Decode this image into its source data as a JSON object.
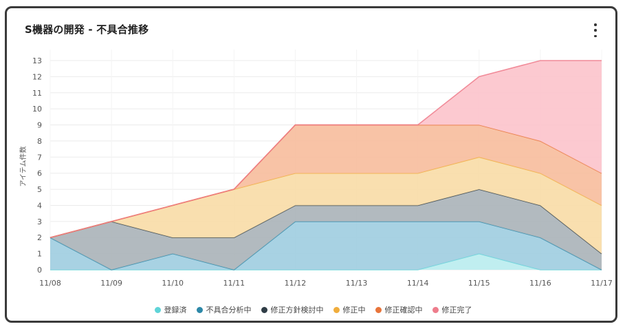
{
  "card": {
    "title": "S機器の開発 - 不具合推移"
  },
  "chart_data": {
    "type": "area",
    "stacked": true,
    "title": "S機器の開発 - 不具合推移",
    "xlabel": "",
    "ylabel": "アイテム件数",
    "categories": [
      "11/08",
      "11/09",
      "11/10",
      "11/11",
      "11/12",
      "11/13",
      "11/14",
      "11/15",
      "11/16",
      "11/17"
    ],
    "ylim": [
      0,
      13
    ],
    "yticks": [
      0,
      1,
      2,
      3,
      4,
      5,
      6,
      7,
      8,
      9,
      10,
      11,
      12,
      13
    ],
    "grid": true,
    "legend_position": "bottom",
    "series": [
      {
        "name": "登録済",
        "color": "#5fd4d8",
        "fill": "#b9ecee",
        "values": [
          0,
          0,
          0,
          0,
          0,
          0,
          0,
          1,
          0,
          0
        ]
      },
      {
        "name": "不具合分析中",
        "color": "#2d88a8",
        "fill": "#9fcde0",
        "values": [
          2,
          0,
          1,
          0,
          3,
          3,
          3,
          2,
          2,
          0
        ]
      },
      {
        "name": "修正方針検討中",
        "color": "#2f3d46",
        "fill": "#aab3b8",
        "values": [
          0,
          3,
          1,
          2,
          1,
          1,
          1,
          2,
          2,
          1
        ]
      },
      {
        "name": "修正中",
        "color": "#f0ad3c",
        "fill": "#f8dca6",
        "values": [
          0,
          0,
          2,
          3,
          2,
          2,
          2,
          2,
          2,
          3
        ]
      },
      {
        "name": "修正確認中",
        "color": "#e8743a",
        "fill": "#f7bc9c",
        "values": [
          0,
          0,
          0,
          0,
          3,
          3,
          3,
          2,
          2,
          2
        ]
      },
      {
        "name": "修正完了",
        "color": "#ee7d8c",
        "fill": "#fcc3cb",
        "values": [
          0,
          0,
          0,
          0,
          0,
          0,
          0,
          3,
          5,
          7
        ]
      }
    ]
  }
}
